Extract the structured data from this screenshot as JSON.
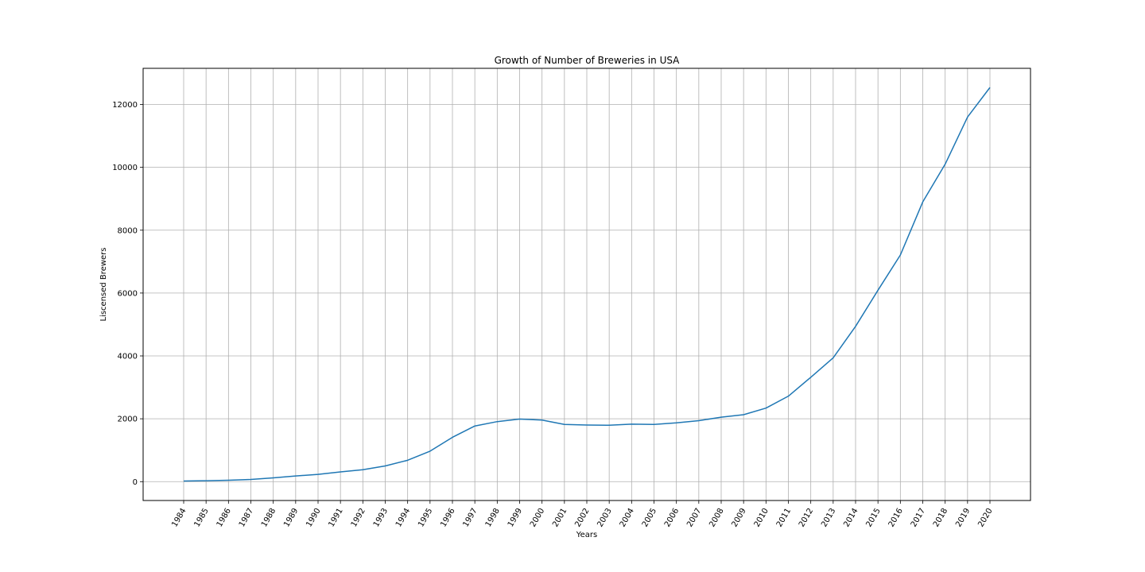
{
  "chart_data": {
    "type": "line",
    "title": "Growth of Number of Breweries in USA",
    "xlabel": "Years",
    "ylabel": "Liscensed Brewers",
    "grid": true,
    "legend": "none",
    "ylim": [
      -600,
      13150
    ],
    "yticks": [
      0,
      2000,
      4000,
      6000,
      8000,
      10000,
      12000
    ],
    "x": [
      "1984",
      "1985",
      "1986",
      "1987",
      "1988",
      "1989",
      "1990",
      "1991",
      "1992",
      "1993",
      "1994",
      "1995",
      "1996",
      "1997",
      "1998",
      "1999",
      "2000",
      "2001",
      "2002",
      "2003",
      "2004",
      "2005",
      "2006",
      "2007",
      "2008",
      "2009",
      "2010",
      "2011",
      "2012",
      "2013",
      "2014",
      "2015",
      "2016",
      "2017",
      "2018",
      "2019",
      "2020"
    ],
    "series": [
      {
        "name": "",
        "color": "#1f77b4",
        "values": [
          20,
          30,
          45,
          70,
          120,
          180,
          230,
          310,
          380,
          500,
          680,
          970,
          1410,
          1770,
          1910,
          1990,
          1960,
          1820,
          1800,
          1795,
          1830,
          1820,
          1870,
          1940,
          2050,
          2130,
          2340,
          2720,
          3320,
          3940,
          4940,
          6090,
          7210,
          8900,
          10100,
          11600,
          12540
        ]
      }
    ]
  }
}
